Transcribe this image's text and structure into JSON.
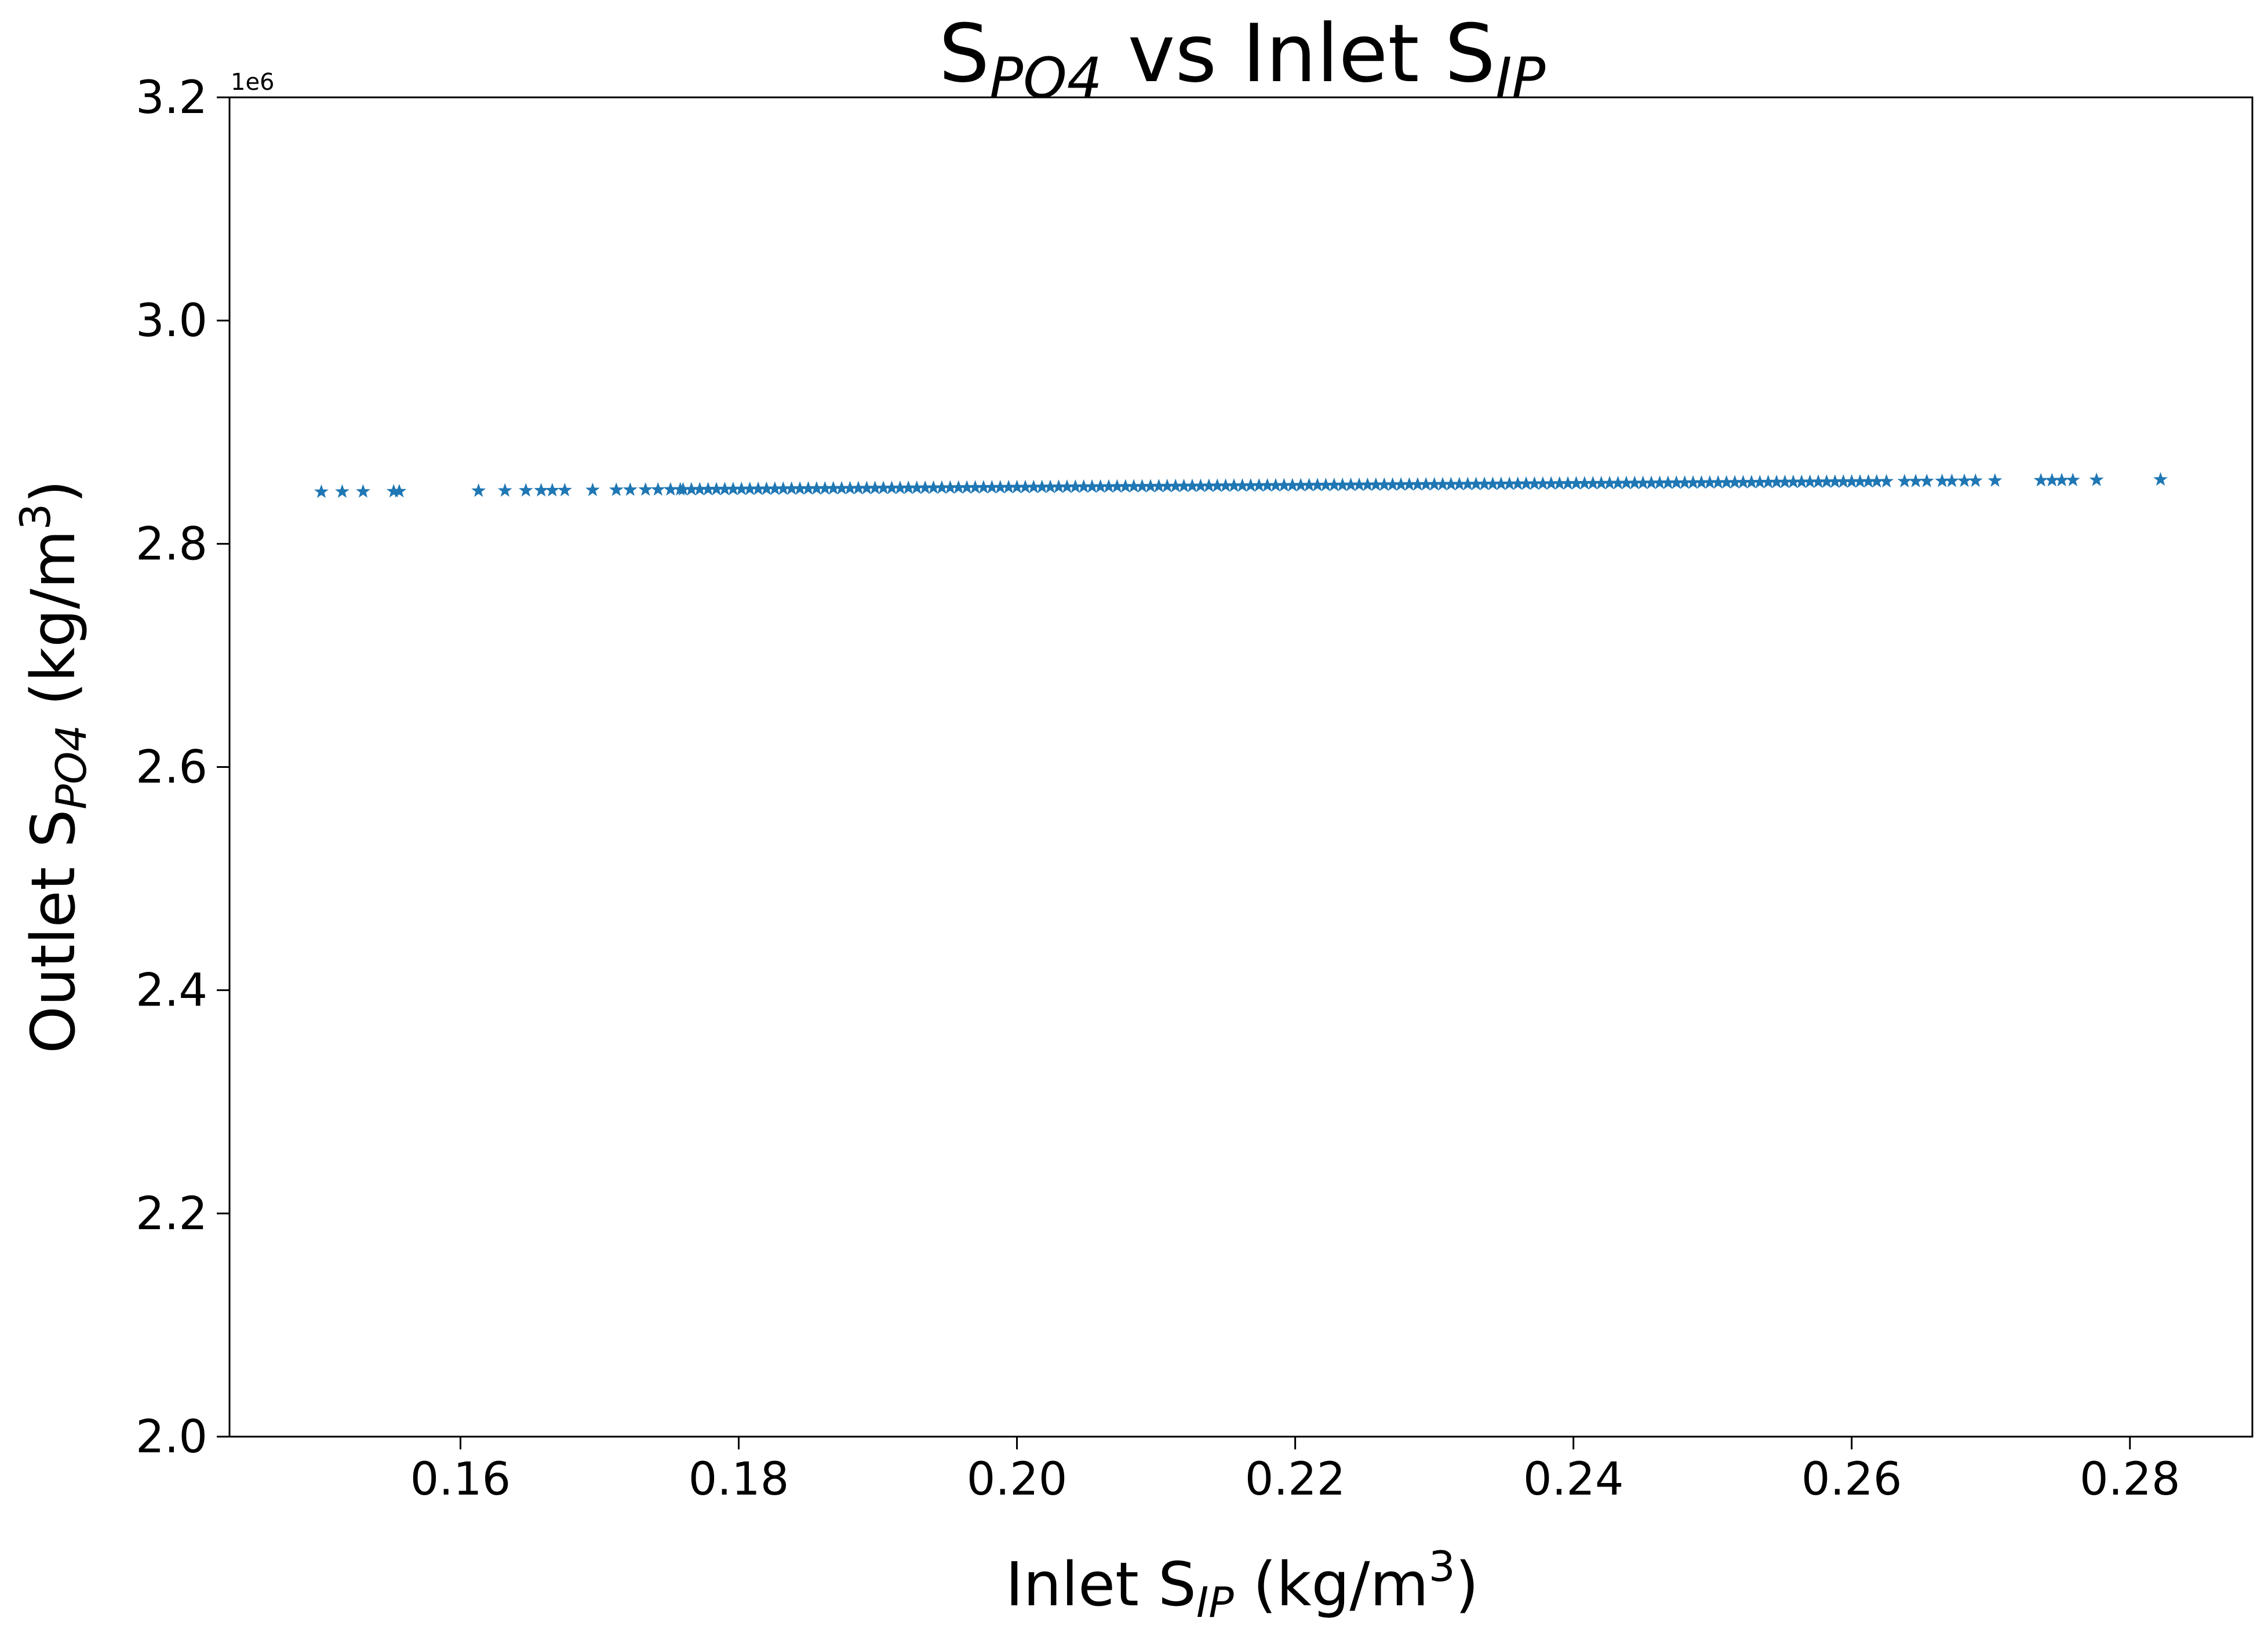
{
  "chart_data": {
    "type": "scatter",
    "title": {
      "main": "S",
      "sub1": "PO4",
      "mid": " vs Inlet S",
      "sub2": "IP"
    },
    "xlabel": {
      "pre": "Inlet S",
      "sub": "IP",
      "mid": " (kg/m",
      "sup": "3",
      "post": ")"
    },
    "ylabel": {
      "pre": "Outlet S",
      "sub": "PO4",
      "mid": " (kg/m",
      "sup": "3",
      "post": ")"
    },
    "y_offset_text": "1e6",
    "xlim": [
      0.1434,
      0.2888
    ],
    "ylim": [
      2.0,
      3.2
    ],
    "x_ticks": [
      0.16,
      0.18,
      0.2,
      0.22,
      0.24,
      0.26,
      0.28
    ],
    "x_tick_labels": [
      "0.16",
      "0.18",
      "0.20",
      "0.22",
      "0.24",
      "0.26",
      "0.28"
    ],
    "y_ticks": [
      2.0,
      2.2,
      2.4,
      2.6,
      2.8,
      3.0,
      3.2
    ],
    "y_tick_labels": [
      "2.0",
      "2.2",
      "2.4",
      "2.6",
      "2.8",
      "3.0",
      "3.2"
    ],
    "marker": "star",
    "color": "#1f77b4",
    "trend": {
      "x_start": 0.15,
      "y_start": 2.8465,
      "x_end": 0.282,
      "y_end": 2.8575
    },
    "dense_range": [
      0.176,
      0.262
    ],
    "sparse_x": [
      0.15,
      0.1515,
      0.153,
      0.1552,
      0.1556,
      0.1613,
      0.1632,
      0.1647,
      0.1658,
      0.1666,
      0.1675,
      0.1695,
      0.1712,
      0.1722,
      0.1733,
      0.1742,
      0.1751,
      0.1758,
      0.2625,
      0.2638,
      0.2646,
      0.2654,
      0.2665,
      0.2672,
      0.2681,
      0.2689,
      0.2703,
      0.2736,
      0.2744,
      0.2751,
      0.2759,
      0.2776,
      0.2822
    ]
  }
}
